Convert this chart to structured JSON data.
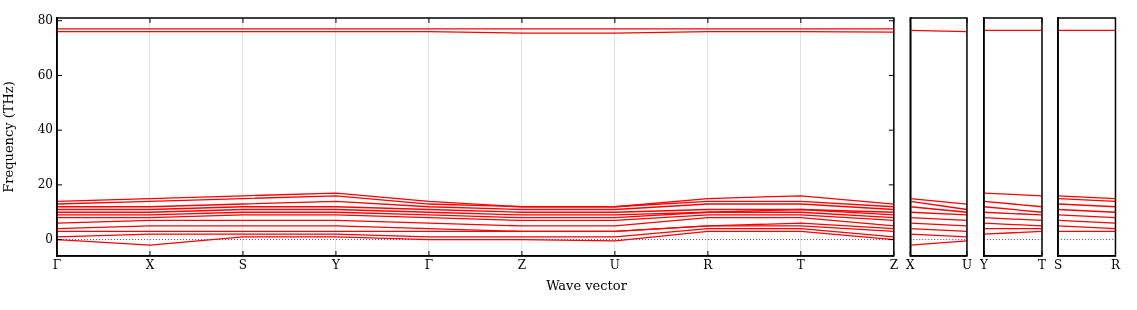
{
  "chart_data": [
    {
      "type": "line",
      "ylabel": "Frequency (THz)",
      "xlabel": "Wave vector",
      "ylim": [
        -6,
        81
      ],
      "categories": [
        "Γ",
        "X",
        "S",
        "Y",
        "Γ",
        "Z",
        "U",
        "R",
        "T",
        "Z"
      ],
      "yticks": [
        0,
        20,
        40,
        60,
        80
      ],
      "grid": "x",
      "marker": "none",
      "line_style": "solid",
      "ref_lines": [
        {
          "axis": "y",
          "value": 0,
          "color": "#0000ff",
          "line_style": "dotted"
        }
      ],
      "series": [
        {
          "color": "#ff0000",
          "values": [
            0,
            -2,
            1,
            1,
            0,
            0,
            -0.5,
            3,
            3,
            0
          ]
        },
        {
          "color": "#ff0000",
          "values": [
            1,
            2,
            2,
            2,
            1,
            1,
            1,
            4,
            4,
            1
          ]
        },
        {
          "color": "#ff0000",
          "values": [
            3,
            3,
            3,
            3,
            3,
            3,
            3,
            5,
            5,
            3
          ]
        },
        {
          "color": "#ff0000",
          "values": [
            4,
            5,
            5,
            5,
            4,
            3,
            3,
            5,
            6,
            4
          ]
        },
        {
          "color": "#ff0000",
          "values": [
            6,
            7,
            7,
            7,
            6,
            5,
            5,
            8,
            8,
            5
          ]
        },
        {
          "color": "#ff0000",
          "values": [
            8,
            8,
            9,
            9,
            8,
            7,
            7,
            9,
            9,
            7
          ]
        },
        {
          "color": "#ff0000",
          "values": [
            9,
            9,
            10,
            10,
            9,
            8,
            8,
            10,
            10,
            8
          ]
        },
        {
          "color": "#ff0000",
          "values": [
            10,
            10,
            11,
            11,
            10,
            9,
            9,
            10,
            11,
            9
          ]
        },
        {
          "color": "#ff0000",
          "values": [
            11,
            11,
            12,
            12,
            11,
            10,
            10,
            11,
            11,
            10
          ]
        },
        {
          "color": "#ff0000",
          "values": [
            12,
            12,
            13,
            14,
            12,
            11,
            11,
            13,
            13,
            11
          ]
        },
        {
          "color": "#ff0000",
          "values": [
            13,
            14,
            15,
            16,
            13,
            12,
            12,
            14,
            14,
            12
          ]
        },
        {
          "color": "#ff0000",
          "values": [
            14,
            15,
            16,
            17,
            14,
            12,
            12,
            15,
            16,
            13
          ]
        },
        {
          "color": "#ff0000",
          "values": [
            77,
            77,
            77,
            77,
            77,
            77,
            77,
            77,
            77,
            77
          ]
        },
        {
          "color": "#ff0000",
          "values": [
            76,
            76,
            76,
            76,
            76,
            75.5,
            75.5,
            76,
            76,
            75.8
          ]
        }
      ]
    },
    {
      "type": "line",
      "ylim": [
        -6,
        81
      ],
      "categories": [
        "X",
        "U"
      ],
      "yticks": [
        0,
        20,
        40,
        60,
        80
      ],
      "tick_labels": "x",
      "marker": "none",
      "line_style": "solid",
      "ref_lines": [
        {
          "axis": "y",
          "value": 0,
          "color": "#0000ff",
          "line_style": "dotted"
        }
      ],
      "series": [
        {
          "color": "#ff0000",
          "values": [
            -2,
            -0.5
          ]
        },
        {
          "color": "#ff0000",
          "values": [
            2,
            1
          ]
        },
        {
          "color": "#ff0000",
          "values": [
            4,
            3
          ]
        },
        {
          "color": "#ff0000",
          "values": [
            6,
            5
          ]
        },
        {
          "color": "#ff0000",
          "values": [
            8,
            7
          ]
        },
        {
          "color": "#ff0000",
          "values": [
            10,
            9
          ]
        },
        {
          "color": "#ff0000",
          "values": [
            12,
            10
          ]
        },
        {
          "color": "#ff0000",
          "values": [
            14,
            11
          ]
        },
        {
          "color": "#ff0000",
          "values": [
            15,
            13
          ]
        },
        {
          "color": "#ff0000",
          "values": [
            76.5,
            76
          ]
        }
      ]
    },
    {
      "type": "line",
      "ylim": [
        -6,
        81
      ],
      "categories": [
        "Y",
        "T"
      ],
      "yticks": [
        0,
        20,
        40,
        60,
        80
      ],
      "tick_labels": "x",
      "marker": "none",
      "line_style": "solid",
      "ref_lines": [
        {
          "axis": "y",
          "value": 0,
          "color": "#0000ff",
          "line_style": "dotted"
        }
      ],
      "series": [
        {
          "color": "#ff0000",
          "values": [
            2,
            3
          ]
        },
        {
          "color": "#ff0000",
          "values": [
            4,
            4
          ]
        },
        {
          "color": "#ff0000",
          "values": [
            6,
            5
          ]
        },
        {
          "color": "#ff0000",
          "values": [
            8,
            7
          ]
        },
        {
          "color": "#ff0000",
          "values": [
            10,
            9
          ]
        },
        {
          "color": "#ff0000",
          "values": [
            12,
            10
          ]
        },
        {
          "color": "#ff0000",
          "values": [
            14,
            12
          ]
        },
        {
          "color": "#ff0000",
          "values": [
            17,
            16
          ]
        },
        {
          "color": "#ff0000",
          "values": [
            76.5,
            76.5
          ]
        }
      ]
    },
    {
      "type": "line",
      "ylim": [
        -6,
        81
      ],
      "categories": [
        "S",
        "R"
      ],
      "yticks": [
        0,
        20,
        40,
        60,
        80
      ],
      "tick_labels": "x",
      "marker": "none",
      "line_style": "solid",
      "ref_lines": [
        {
          "axis": "y",
          "value": 0,
          "color": "#0000ff",
          "line_style": "dotted"
        }
      ],
      "series": [
        {
          "color": "#ff0000",
          "values": [
            3,
            3
          ]
        },
        {
          "color": "#ff0000",
          "values": [
            5,
            4
          ]
        },
        {
          "color": "#ff0000",
          "values": [
            7,
            6
          ]
        },
        {
          "color": "#ff0000",
          "values": [
            9,
            8
          ]
        },
        {
          "color": "#ff0000",
          "values": [
            11,
            10
          ]
        },
        {
          "color": "#ff0000",
          "values": [
            13,
            12
          ]
        },
        {
          "color": "#ff0000",
          "values": [
            15,
            14
          ]
        },
        {
          "color": "#ff0000",
          "values": [
            16,
            15
          ]
        },
        {
          "color": "#ff0000",
          "values": [
            76.5,
            76.5
          ]
        }
      ]
    }
  ]
}
